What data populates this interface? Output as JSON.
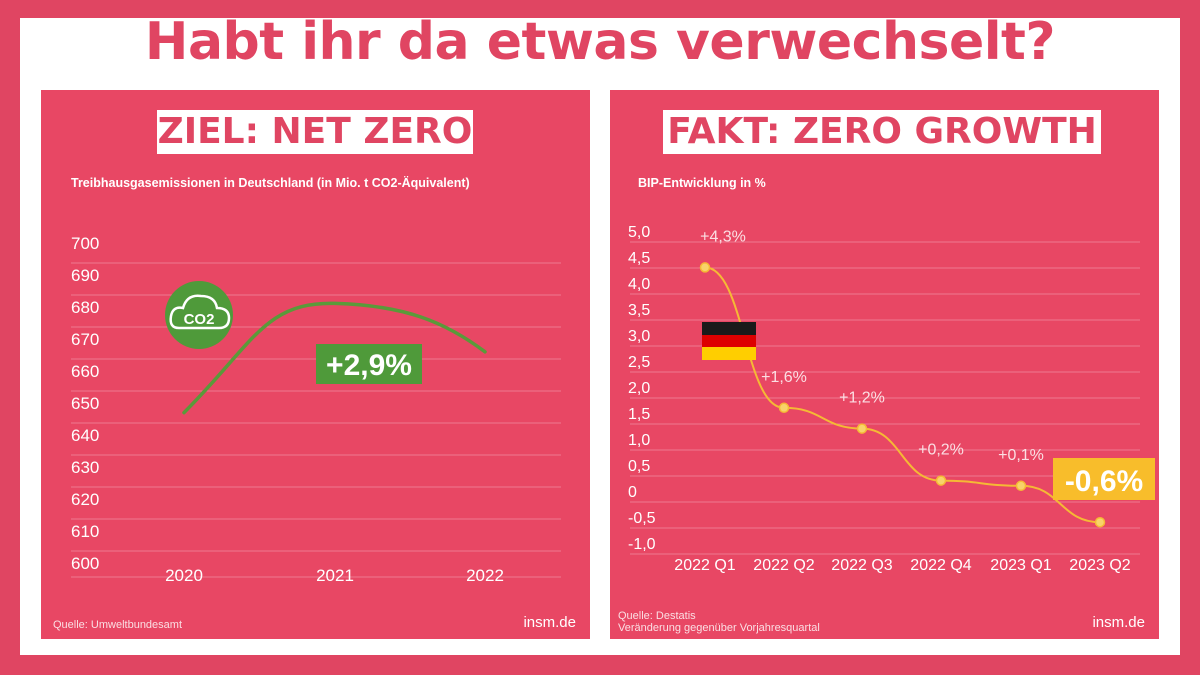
{
  "headline": "Habt ihr da etwas verwechselt?",
  "colors": {
    "background": "#e04562",
    "panel": "#e84764",
    "emissions_line": "#5a9a3a",
    "gdp_line": "#f5b935",
    "highlight_green": "#4f9a3a",
    "highlight_yellow": "#f8bd2b"
  },
  "left_panel": {
    "label": "ZIEL: NET ZERO",
    "source": "Quelle: Umweltbundesamt",
    "brand": "insm.de",
    "badge": "+2,9%",
    "icon": "co2-cloud-icon",
    "icon_text": "CO2"
  },
  "right_panel": {
    "label": "FAKT: ZERO GROWTH",
    "source_line1": "Quelle: Destatis",
    "source_line2": "Veränderung gegenüber Vorjahresquartal",
    "brand": "insm.de",
    "badge": "-0,6%",
    "flag": "germany-flag-icon"
  },
  "chart_data": [
    {
      "type": "line",
      "subtitle": "Treibhausgasemissionen in Deutschland (in Mio. t CO2-Äquivalent)",
      "x": [
        "2020",
        "2021",
        "2022"
      ],
      "series": [
        {
          "values": [
            647,
            678,
            666
          ]
        }
      ],
      "ylim": [
        600,
        700
      ],
      "yticks": [
        "700",
        "690",
        "680",
        "670",
        "660",
        "650",
        "640",
        "630",
        "620",
        "610",
        "600"
      ],
      "grid": true
    },
    {
      "type": "line",
      "subtitle": "BIP-Entwicklung in %",
      "x": [
        "2022 Q1",
        "2022 Q2",
        "2022 Q3",
        "2022 Q4",
        "2023 Q1",
        "2023 Q2"
      ],
      "series": [
        {
          "values": [
            4.3,
            1.6,
            1.2,
            0.2,
            0.1,
            -0.6
          ]
        }
      ],
      "data_labels": [
        "+4,3%",
        "+1,6%",
        "+1,2%",
        "+0,2%",
        "+0,1%",
        ""
      ],
      "ylim": [
        -1.0,
        5.0
      ],
      "yticks": [
        "5,0",
        "4,5",
        "4,0",
        "3,5",
        "3,0",
        "2,5",
        "2,0",
        "1,5",
        "1,0",
        "0,5",
        "0",
        "-0,5",
        "-1,0"
      ],
      "grid": true
    }
  ]
}
